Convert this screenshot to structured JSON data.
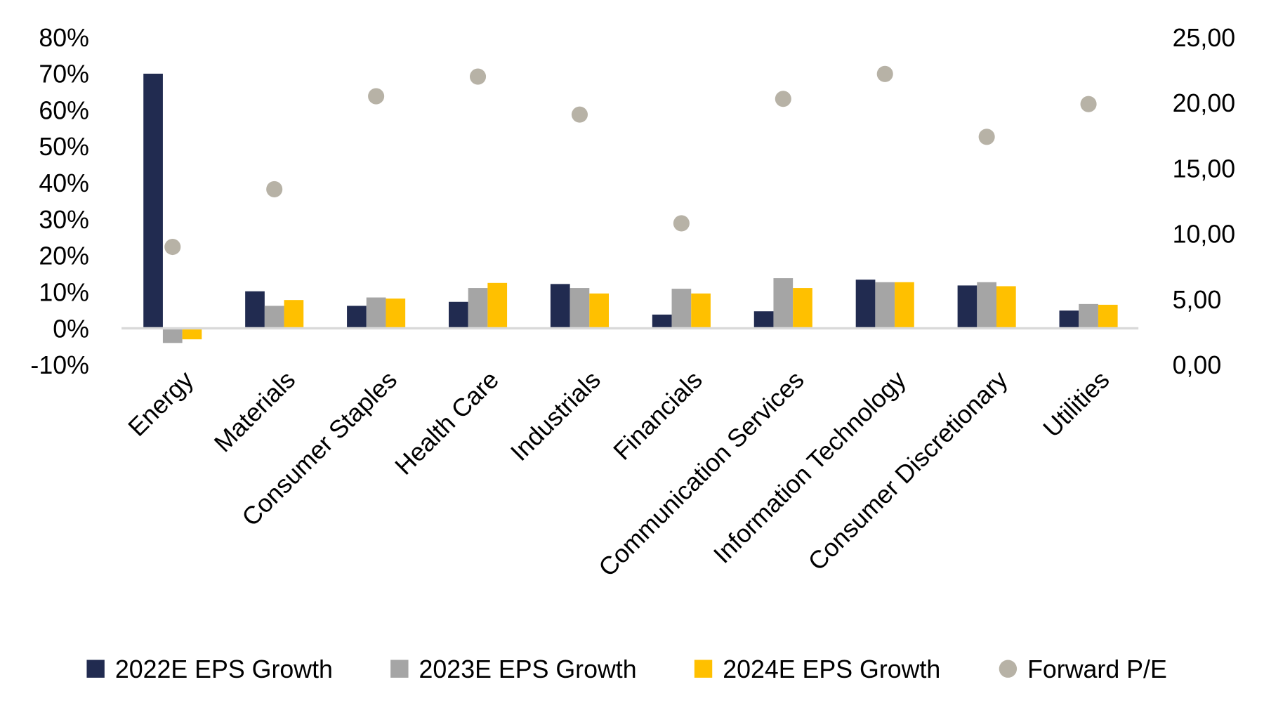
{
  "chart_data": {
    "type": "bar",
    "title": "",
    "categories": [
      "Energy",
      "Materials",
      "Consumer Staples",
      "Health Care",
      "Industrials",
      "Financials",
      "Communication Services",
      "Information Technology",
      "Consumer Discretionary",
      "Utilities"
    ],
    "series": [
      {
        "name": "2022E EPS Growth",
        "type": "bar",
        "axis": "left",
        "color": "#212b50",
        "values": [
          70,
          10.2,
          6.2,
          7.3,
          12.2,
          3.8,
          4.7,
          13.4,
          11.8,
          4.9
        ]
      },
      {
        "name": "2023E EPS Growth",
        "type": "bar",
        "axis": "left",
        "color": "#a5a5a5",
        "values": [
          -4,
          6.2,
          8.5,
          11.1,
          11.1,
          10.9,
          13.8,
          12.7,
          12.7,
          6.7
        ]
      },
      {
        "name": "2024E EPS Growth",
        "type": "bar",
        "axis": "left",
        "color": "#ffc000",
        "values": [
          -3,
          7.8,
          8.2,
          12.5,
          9.6,
          9.6,
          11.1,
          12.7,
          11.6,
          6.5
        ]
      },
      {
        "name": "Forward P/E",
        "type": "scatter",
        "axis": "right",
        "color": "#b7b2a6",
        "values": [
          9.0,
          13.4,
          20.5,
          22.0,
          19.1,
          10.8,
          20.3,
          22.2,
          17.4,
          19.9
        ]
      }
    ],
    "ylim_left": [
      -10,
      80
    ],
    "yticks_left": [
      "80%",
      "70%",
      "60%",
      "50%",
      "40%",
      "30%",
      "20%",
      "10%",
      "0%",
      "-10%"
    ],
    "ylim_right": [
      0,
      25
    ],
    "yticks_right": [
      "25,00",
      "20,00",
      "15,00",
      "10,00",
      "5,00",
      "0,00"
    ],
    "legend_position": "bottom",
    "grid": false
  }
}
